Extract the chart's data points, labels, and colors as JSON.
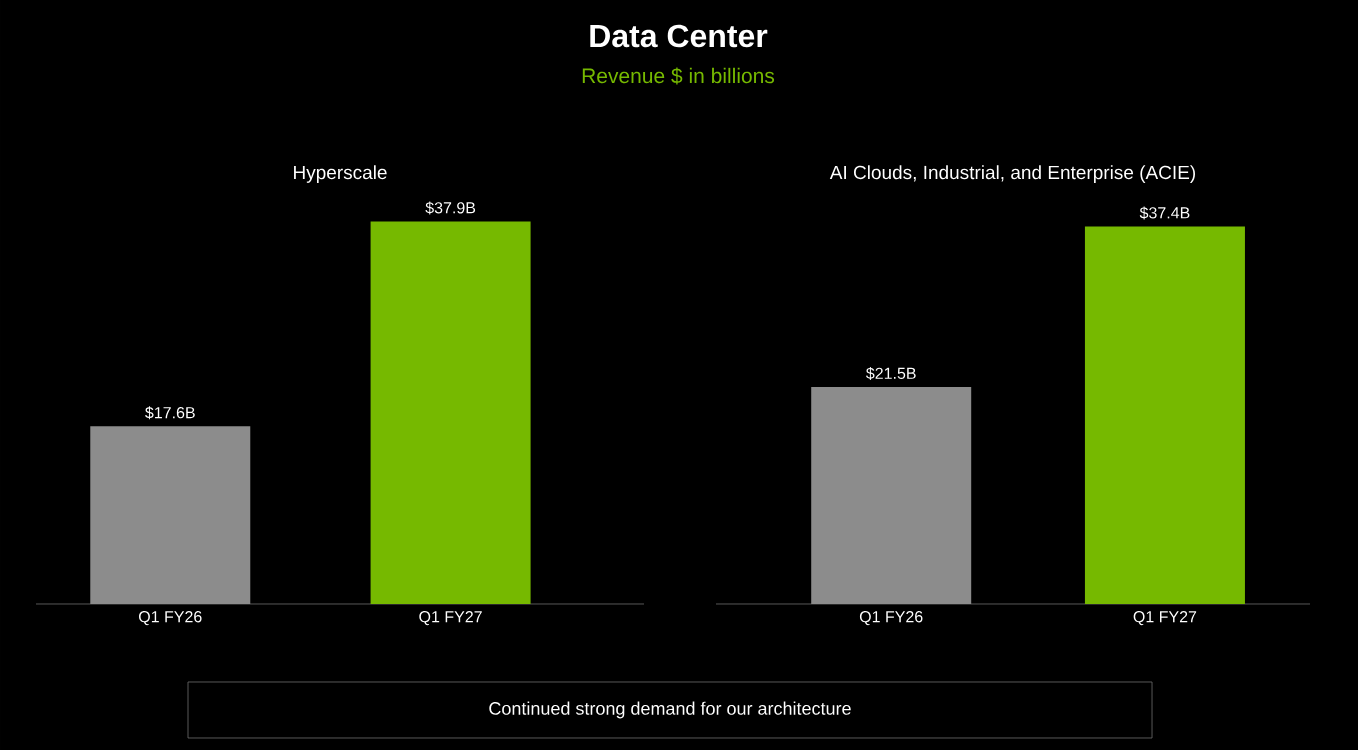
{
  "chart_data": [
    {
      "type": "other",
      "title": "Data Center",
      "subtitle": "Revenue $ in billions",
      "annotations": [
        "Continued strong demand for our architecture"
      ]
    },
    {
      "type": "bar",
      "title": "Hyperscale",
      "categories": [
        "Q1 FY26",
        "Q1 FY27"
      ],
      "values": [
        17.6,
        37.9
      ],
      "colors": [
        "#8c8c8c",
        "#76b900"
      ],
      "value_labels": [
        "$17.6B",
        "$37.9B"
      ]
    },
    {
      "type": "bar",
      "title": "AI Clouds, Industrial, and Enterprise (ACIE)",
      "categories": [
        "Q1 FY26",
        "Q1 FY27"
      ],
      "values": [
        21.5,
        37.4
      ],
      "colors": [
        "#8c8c8c",
        "#76b900"
      ],
      "value_labels": [
        "$21.5B",
        "$37.4B"
      ]
    }
  ]
}
